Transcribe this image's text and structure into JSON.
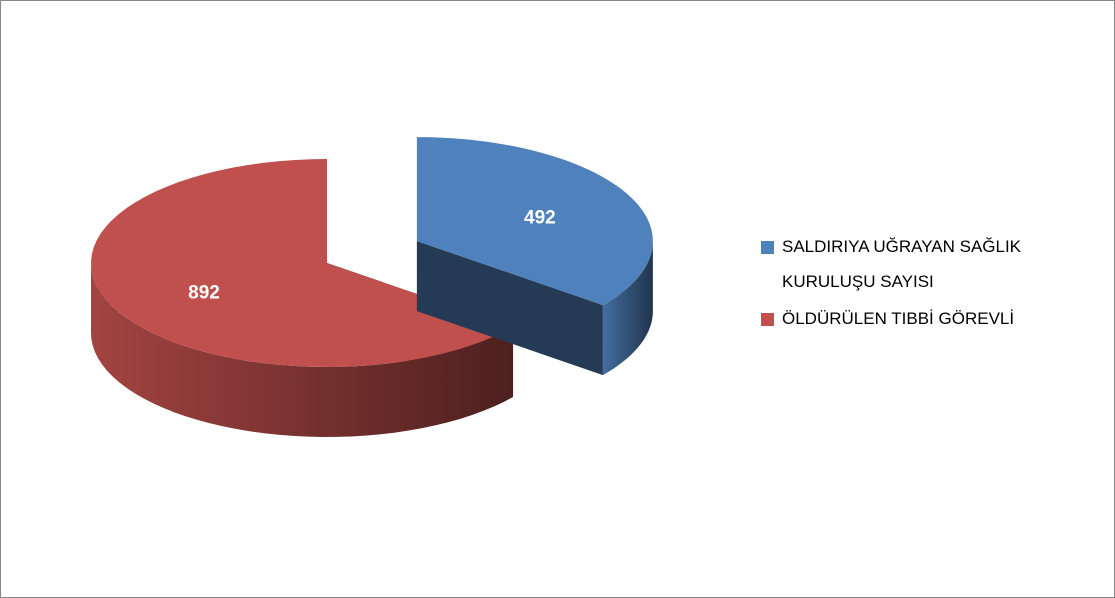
{
  "chart_data": {
    "type": "pie",
    "categories": [
      "SALDIRIYA UĞRAYAN SAĞLIK KURULUŞU SAYISI",
      "ÖLDÜRÜLEN TIBBİ GÖREVLİ"
    ],
    "values": [
      492,
      892
    ],
    "colors": [
      "#4f81bd",
      "#c0504d"
    ],
    "legend": "right"
  }
}
